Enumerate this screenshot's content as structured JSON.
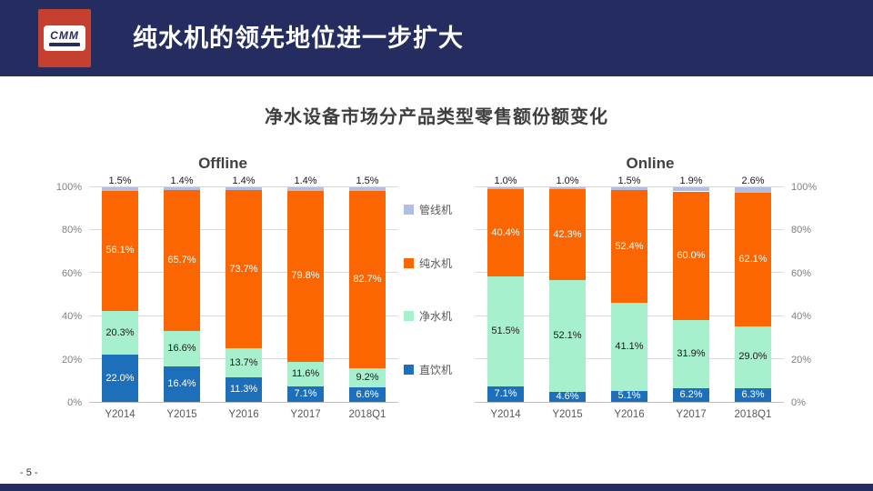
{
  "header": {
    "title": "纯水机的领先地位进一步扩大",
    "logo_text": "CMM",
    "bar_color": "#252C5F",
    "logo_color": "#C5402F"
  },
  "subtitle": "净水设备市场分产品类型零售额份额变化",
  "page_number": "- 5 -",
  "legend": {
    "items": [
      {
        "label": "管线机",
        "color": "#B0BEE4"
      },
      {
        "label": "纯水机",
        "color": "#FB6602"
      },
      {
        "label": "净水机",
        "color": "#A7F0CD"
      },
      {
        "label": "直饮机",
        "color": "#1E6FBA"
      }
    ]
  },
  "chart_data": [
    {
      "type": "bar",
      "stacked": true,
      "title": "Offline",
      "categories": [
        "Y2014",
        "Y2015",
        "Y2016",
        "Y2017",
        "2018Q1"
      ],
      "series": [
        {
          "name": "直饮机",
          "color": "#1E6FBA",
          "label_color": "#FFFFFF",
          "values": [
            22.0,
            16.4,
            11.3,
            7.1,
            6.6
          ]
        },
        {
          "name": "净水机",
          "color": "#A7F0CD",
          "label_color": "#1A1A1A",
          "values": [
            20.3,
            16.6,
            13.7,
            11.6,
            9.2
          ]
        },
        {
          "name": "纯水机",
          "color": "#FB6602",
          "label_color": "#FFFFFF",
          "values": [
            56.1,
            65.7,
            73.7,
            79.8,
            82.7
          ]
        },
        {
          "name": "管线机",
          "color": "#B0BEE4",
          "label_color": "#1A1A1A",
          "values": [
            1.5,
            1.4,
            1.4,
            1.4,
            1.5
          ]
        }
      ],
      "ylim": [
        0,
        100
      ],
      "yticks": [
        "0%",
        "20%",
        "40%",
        "60%",
        "80%",
        "100%"
      ],
      "axis_side": "left",
      "grid": true,
      "legend_position": "between-charts"
    },
    {
      "type": "bar",
      "stacked": true,
      "title": "Online",
      "categories": [
        "Y2014",
        "Y2015",
        "Y2016",
        "Y2017",
        "2018Q1"
      ],
      "series": [
        {
          "name": "直饮机",
          "color": "#1E6FBA",
          "label_color": "#FFFFFF",
          "values": [
            7.1,
            4.6,
            5.1,
            6.2,
            6.3
          ]
        },
        {
          "name": "净水机",
          "color": "#A7F0CD",
          "label_color": "#1A1A1A",
          "values": [
            51.5,
            52.1,
            41.1,
            31.9,
            29.0
          ]
        },
        {
          "name": "纯水机",
          "color": "#FB6602",
          "label_color": "#FFFFFF",
          "values": [
            40.4,
            42.3,
            52.4,
            60.0,
            62.1
          ]
        },
        {
          "name": "管线机",
          "color": "#B0BEE4",
          "label_color": "#1A1A1A",
          "values": [
            1.0,
            1.0,
            1.5,
            1.9,
            2.6
          ]
        }
      ],
      "ylim": [
        0,
        100
      ],
      "yticks": [
        "0%",
        "20%",
        "40%",
        "60%",
        "80%",
        "100%"
      ],
      "axis_side": "right",
      "grid": true,
      "legend_position": "between-charts"
    }
  ]
}
